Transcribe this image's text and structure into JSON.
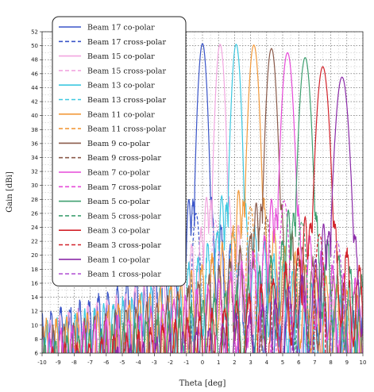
{
  "chart_data": {
    "type": "line",
    "xlabel": "Theta [deg]",
    "ylabel": "Gain [dBi]",
    "xlim": [
      -10,
      10
    ],
    "ylim": [
      6,
      52
    ],
    "xticks": [
      "-10",
      "-9",
      "-8",
      "-7",
      "-6",
      "-5",
      "-4",
      "-3",
      "-2",
      "-1",
      "0",
      "1",
      "2",
      "3",
      "4",
      "5",
      "6",
      "7",
      "8",
      "9",
      "10"
    ],
    "yticks": [
      "6",
      "8",
      "10",
      "12",
      "14",
      "16",
      "18",
      "20",
      "22",
      "24",
      "26",
      "28",
      "30",
      "32",
      "34",
      "36",
      "38",
      "40",
      "42",
      "44",
      "46",
      "48",
      "50",
      "52"
    ],
    "grid": true,
    "legend_position": "top-left",
    "series": [
      {
        "name": "Beam 17 co-polar",
        "color": "#3a55c8",
        "dash": false,
        "peak_theta": 0.0,
        "peak_gain": 50.3,
        "width": 0.5,
        "side_gain": 28,
        "side_offset": -0.85
      },
      {
        "name": "Beam 17 cross-polar",
        "color": "#3a55c8",
        "dash": true,
        "peak_theta": -0.4,
        "peak_gain": 26.0,
        "width": 0.3
      },
      {
        "name": "Beam 15 co-polar",
        "color": "#f2a6e0",
        "dash": false,
        "peak_theta": 1.1,
        "peak_gain": 50.2,
        "width": 0.5,
        "side_gain": 28.3,
        "side_offset": -0.85
      },
      {
        "name": "Beam 15 cross-polar",
        "color": "#f2a6e0",
        "dash": true,
        "peak_theta": 0.8,
        "peak_gain": 25.0,
        "width": 0.3
      },
      {
        "name": "Beam 13 co-polar",
        "color": "#3ec8e0",
        "dash": false,
        "peak_theta": 2.1,
        "peak_gain": 50.2,
        "width": 0.5,
        "side_gain": 28.5,
        "side_offset": -0.9
      },
      {
        "name": "Beam 13 cross-polar",
        "color": "#3ec8e0",
        "dash": true,
        "peak_theta": 1.9,
        "peak_gain": 23.5,
        "width": 0.3
      },
      {
        "name": "Beam 11 co-polar",
        "color": "#f29a3c",
        "dash": false,
        "peak_theta": 3.2,
        "peak_gain": 50.1,
        "width": 0.55,
        "side_gain": 29.3,
        "side_offset": -0.95
      },
      {
        "name": "Beam 11 cross-polar",
        "color": "#f29a3c",
        "dash": true,
        "peak_theta": 3.0,
        "peak_gain": 27.0,
        "width": 0.3
      },
      {
        "name": "Beam 9 co-polar",
        "color": "#8a5a4a",
        "dash": false,
        "peak_theta": 4.3,
        "peak_gain": 49.6,
        "width": 0.55,
        "side_gain": 27.5,
        "side_offset": -0.95
      },
      {
        "name": "Beam 9 cross-polar",
        "color": "#8a5a4a",
        "dash": true,
        "peak_theta": 4.0,
        "peak_gain": 25.5,
        "width": 0.3
      },
      {
        "name": "Beam 7 co-polar",
        "color": "#e64ad8",
        "dash": false,
        "peak_theta": 5.3,
        "peak_gain": 49.0,
        "width": 0.6,
        "side_gain": 28.0,
        "side_offset": -1.0
      },
      {
        "name": "Beam 7 cross-polar",
        "color": "#e64ad8",
        "dash": true,
        "peak_theta": 5.1,
        "peak_gain": 27.8,
        "width": 0.35
      },
      {
        "name": "Beam 5 co-polar",
        "color": "#3fa070",
        "dash": false,
        "peak_theta": 6.4,
        "peak_gain": 48.3,
        "width": 0.6,
        "side_gain": 26.5,
        "side_offset": -1.05
      },
      {
        "name": "Beam 5 cross-polar",
        "color": "#3fa070",
        "dash": true,
        "peak_theta": 6.2,
        "peak_gain": 24.8,
        "width": 0.35
      },
      {
        "name": "Beam 3 co-polar",
        "color": "#d2222a",
        "dash": false,
        "peak_theta": 7.5,
        "peak_gain": 47.0,
        "width": 0.65,
        "side_gain": 25.5,
        "side_offset": -1.1
      },
      {
        "name": "Beam 3 cross-polar",
        "color": "#d2222a",
        "dash": true,
        "peak_theta": 7.3,
        "peak_gain": 23.0,
        "width": 0.35
      },
      {
        "name": "Beam 1 co-polar",
        "color": "#8b2ba8",
        "dash": false,
        "peak_theta": 8.7,
        "peak_gain": 45.5,
        "width": 0.7,
        "side_gain": 24.5,
        "side_offset": -1.15
      },
      {
        "name": "Beam 1 cross-polar",
        "color": "#b65ad6",
        "dash": true,
        "peak_theta": 8.4,
        "peak_gain": 22.0,
        "width": 0.4
      }
    ]
  }
}
